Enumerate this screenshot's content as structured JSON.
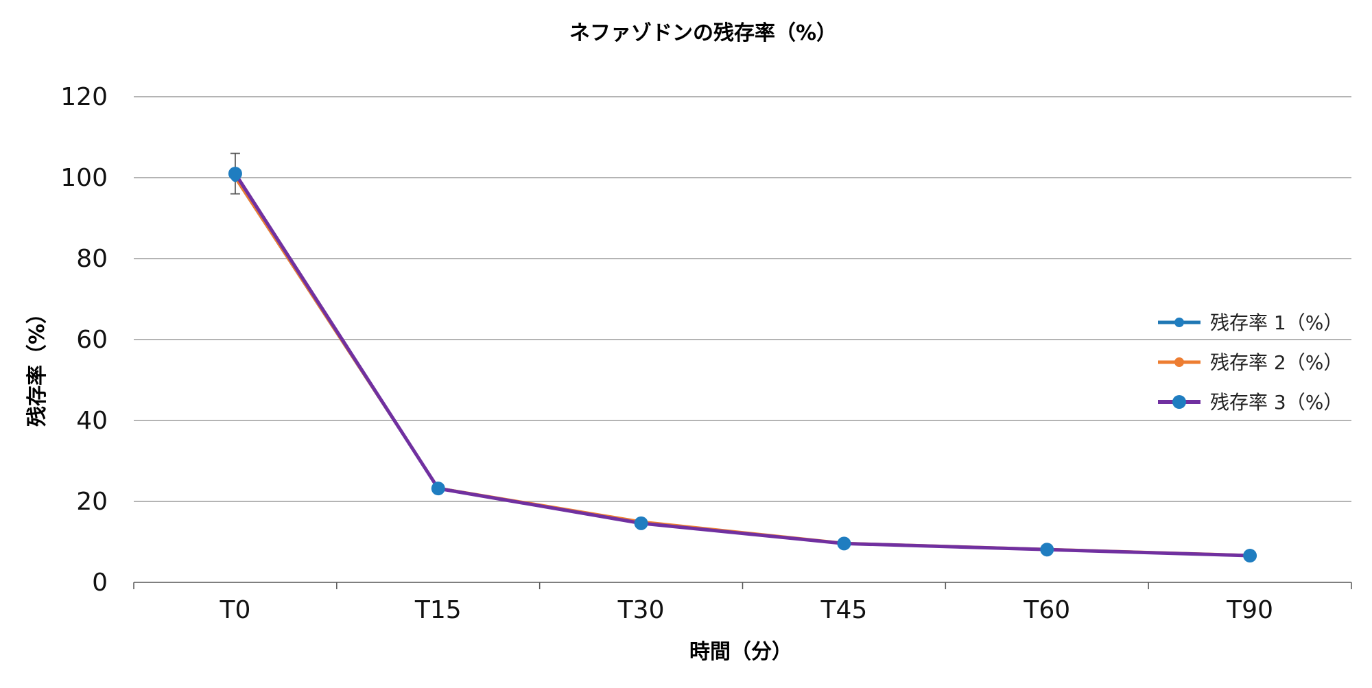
{
  "chart_data": {
    "type": "line",
    "title": "ネファゾドンの残存率（%）",
    "xlabel": "時間（分）",
    "ylabel": "残存率（%）",
    "categories": [
      "T0",
      "T15",
      "T30",
      "T45",
      "T60",
      "T90"
    ],
    "ylim": [
      0,
      120
    ],
    "yticks": [
      "0",
      "20",
      "40",
      "60",
      "80",
      "100",
      "120"
    ],
    "grid": true,
    "legend_position": "right",
    "series": [
      {
        "name": "残存率 1（%）",
        "values": [
          100,
          23.3,
          14.8,
          9.6,
          8.1,
          6.6
        ],
        "color": "#1f77b4",
        "marker": "small"
      },
      {
        "name": "残存率 2（%）",
        "values": [
          100,
          23.3,
          15.0,
          9.7,
          8.2,
          6.7
        ],
        "color": "#ed7d31",
        "marker": "small"
      },
      {
        "name": "残存率 3（%）",
        "values": [
          101,
          23.2,
          14.6,
          9.6,
          8.1,
          6.6
        ],
        "color": "#7030a0",
        "marker": "large"
      }
    ],
    "markers_color": "#1f7dc0",
    "error_bar": {
      "category": "T0",
      "low": 96,
      "high": 106
    }
  }
}
